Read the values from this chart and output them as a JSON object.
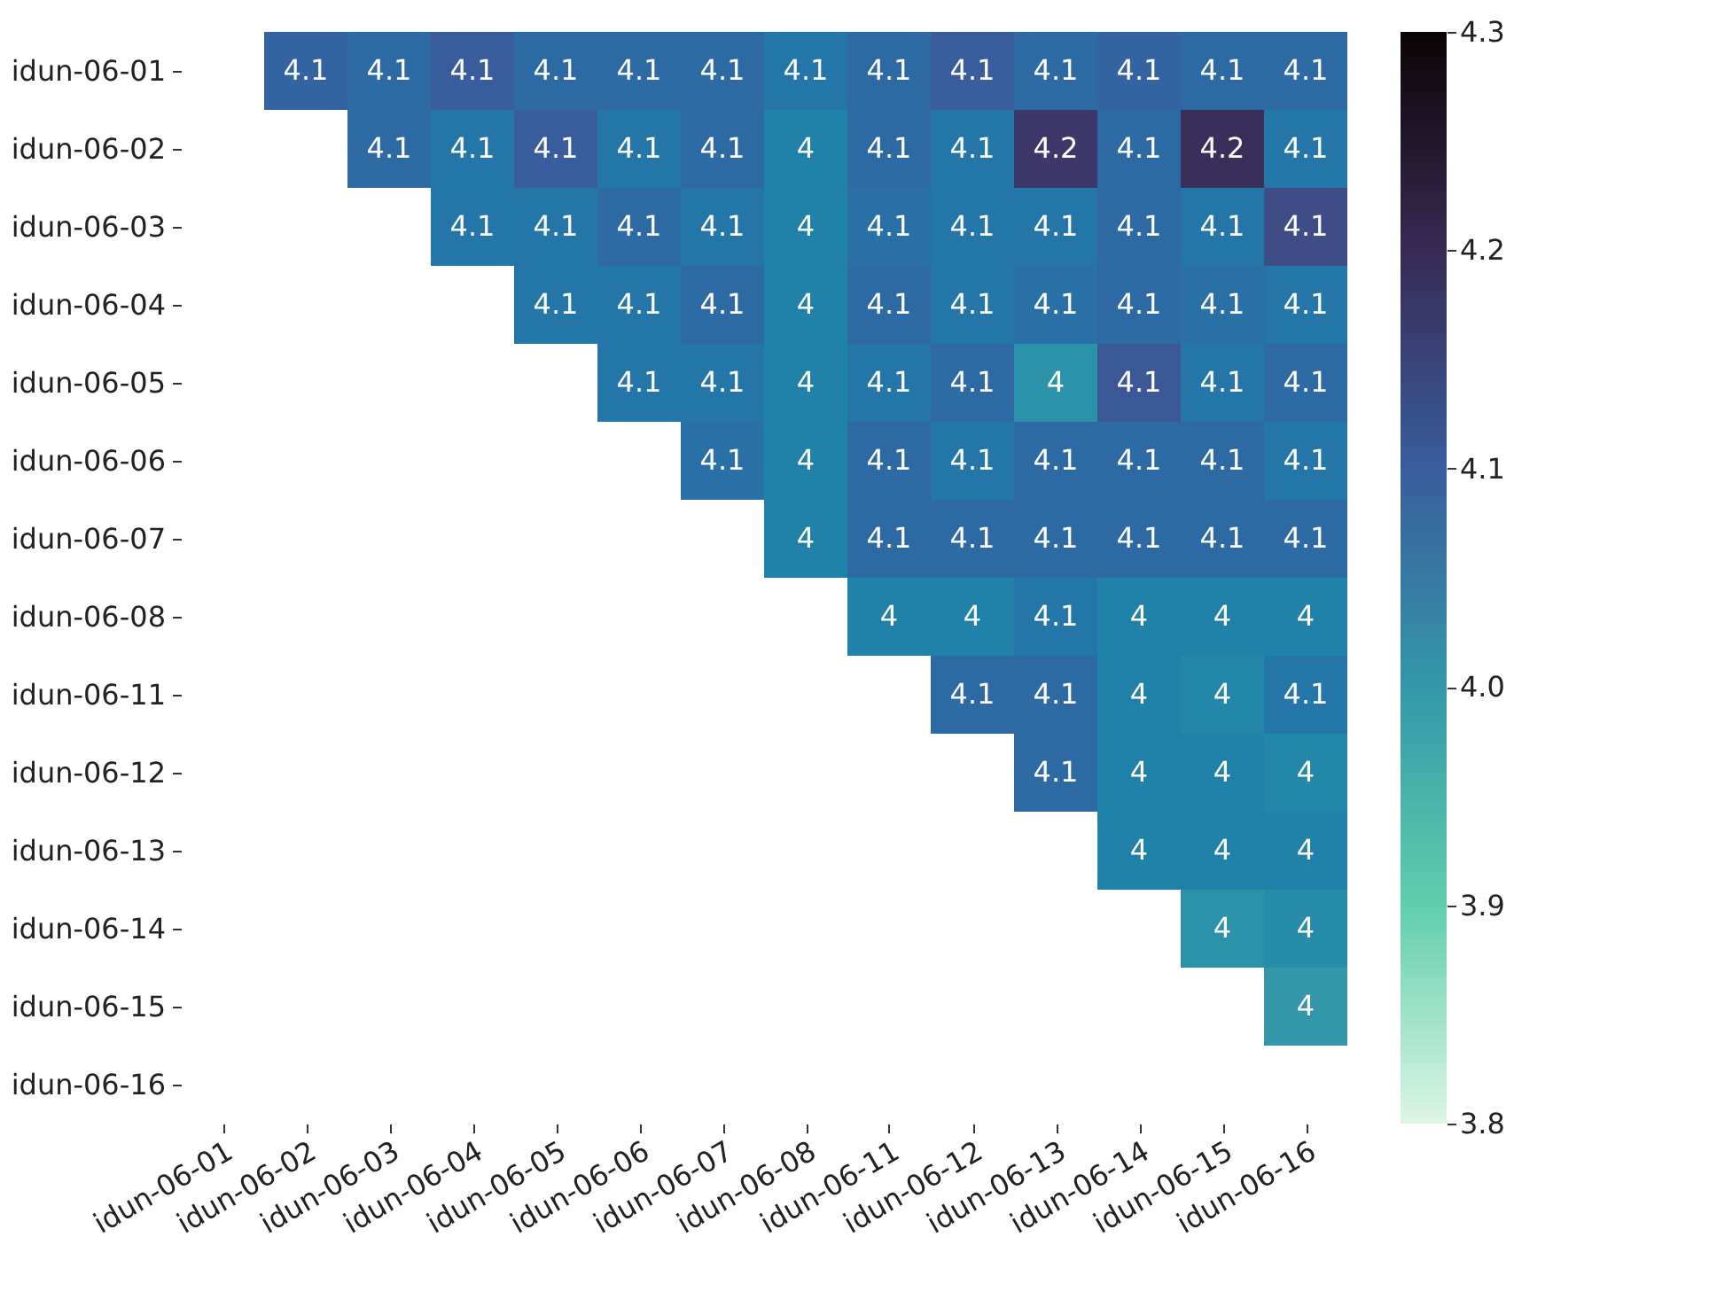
{
  "chart_data": {
    "type": "heatmap",
    "categories": [
      "idun-06-01",
      "idun-06-02",
      "idun-06-03",
      "idun-06-04",
      "idun-06-05",
      "idun-06-06",
      "idun-06-07",
      "idun-06-08",
      "idun-06-11",
      "idun-06-12",
      "idun-06-13",
      "idun-06-14",
      "idun-06-15",
      "idun-06-16"
    ],
    "y_categories": [
      "idun-06-01",
      "idun-06-02",
      "idun-06-03",
      "idun-06-04",
      "idun-06-05",
      "idun-06-06",
      "idun-06-07",
      "idun-06-08",
      "idun-06-11",
      "idun-06-12",
      "idun-06-13",
      "idun-06-14",
      "idun-06-15",
      "idun-06-16"
    ],
    "cells": [
      [
        null,
        4.09,
        4.08,
        4.1,
        4.08,
        4.08,
        4.08,
        4.06,
        4.08,
        4.1,
        4.08,
        4.09,
        4.08,
        4.08
      ],
      [
        null,
        null,
        4.08,
        4.06,
        4.1,
        4.06,
        4.08,
        4.04,
        4.08,
        4.06,
        4.17,
        4.08,
        4.19,
        4.06
      ],
      [
        null,
        null,
        null,
        4.06,
        4.06,
        4.08,
        4.06,
        4.04,
        4.07,
        4.06,
        4.06,
        4.08,
        4.06,
        4.13
      ],
      [
        null,
        null,
        null,
        null,
        4.06,
        4.06,
        4.08,
        4.04,
        4.08,
        4.06,
        4.07,
        4.08,
        4.07,
        4.06
      ],
      [
        null,
        null,
        null,
        null,
        null,
        4.06,
        4.06,
        4.04,
        4.06,
        4.08,
        4.01,
        4.11,
        4.06,
        4.08
      ],
      [
        null,
        null,
        null,
        null,
        null,
        null,
        4.07,
        4.04,
        4.08,
        4.06,
        4.08,
        4.08,
        4.08,
        4.06
      ],
      [
        null,
        null,
        null,
        null,
        null,
        null,
        null,
        4.04,
        4.08,
        4.08,
        4.08,
        4.08,
        4.08,
        4.08
      ],
      [
        null,
        null,
        null,
        null,
        null,
        null,
        null,
        null,
        4.04,
        4.04,
        4.06,
        4.04,
        4.04,
        4.04
      ],
      [
        null,
        null,
        null,
        null,
        null,
        null,
        null,
        null,
        null,
        4.08,
        4.08,
        4.04,
        4.03,
        4.06
      ],
      [
        null,
        null,
        null,
        null,
        null,
        null,
        null,
        null,
        null,
        null,
        4.08,
        4.04,
        4.04,
        4.03
      ],
      [
        null,
        null,
        null,
        null,
        null,
        null,
        null,
        null,
        null,
        null,
        null,
        4.04,
        4.04,
        4.04
      ],
      [
        null,
        null,
        null,
        null,
        null,
        null,
        null,
        null,
        null,
        null,
        null,
        null,
        4.01,
        4.02
      ],
      [
        null,
        null,
        null,
        null,
        null,
        null,
        null,
        null,
        null,
        null,
        null,
        null,
        null,
        4.0
      ],
      [
        null,
        null,
        null,
        null,
        null,
        null,
        null,
        null,
        null,
        null,
        null,
        null,
        null,
        null
      ]
    ],
    "cell_labels": [
      [
        null,
        "4.1",
        "4.1",
        "4.1",
        "4.1",
        "4.1",
        "4.1",
        "4.1",
        "4.1",
        "4.1",
        "4.1",
        "4.1",
        "4.1",
        "4.1"
      ],
      [
        null,
        null,
        "4.1",
        "4.1",
        "4.1",
        "4.1",
        "4.1",
        "4",
        "4.1",
        "4.1",
        "4.2",
        "4.1",
        "4.2",
        "4.1"
      ],
      [
        null,
        null,
        null,
        "4.1",
        "4.1",
        "4.1",
        "4.1",
        "4",
        "4.1",
        "4.1",
        "4.1",
        "4.1",
        "4.1",
        "4.1"
      ],
      [
        null,
        null,
        null,
        null,
        "4.1",
        "4.1",
        "4.1",
        "4",
        "4.1",
        "4.1",
        "4.1",
        "4.1",
        "4.1",
        "4.1"
      ],
      [
        null,
        null,
        null,
        null,
        null,
        "4.1",
        "4.1",
        "4",
        "4.1",
        "4.1",
        "4",
        "4.1",
        "4.1",
        "4.1"
      ],
      [
        null,
        null,
        null,
        null,
        null,
        null,
        "4.1",
        "4",
        "4.1",
        "4.1",
        "4.1",
        "4.1",
        "4.1",
        "4.1"
      ],
      [
        null,
        null,
        null,
        null,
        null,
        null,
        null,
        "4",
        "4.1",
        "4.1",
        "4.1",
        "4.1",
        "4.1",
        "4.1"
      ],
      [
        null,
        null,
        null,
        null,
        null,
        null,
        null,
        null,
        "4",
        "4",
        "4.1",
        "4",
        "4",
        "4"
      ],
      [
        null,
        null,
        null,
        null,
        null,
        null,
        null,
        null,
        null,
        "4.1",
        "4.1",
        "4",
        "4",
        "4.1"
      ],
      [
        null,
        null,
        null,
        null,
        null,
        null,
        null,
        null,
        null,
        null,
        "4.1",
        "4",
        "4",
        "4"
      ],
      [
        null,
        null,
        null,
        null,
        null,
        null,
        null,
        null,
        null,
        null,
        null,
        "4",
        "4",
        "4"
      ],
      [
        null,
        null,
        null,
        null,
        null,
        null,
        null,
        null,
        null,
        null,
        null,
        null,
        "4",
        "4"
      ],
      [
        null,
        null,
        null,
        null,
        null,
        null,
        null,
        null,
        null,
        null,
        null,
        null,
        null,
        "4"
      ],
      [
        null,
        null,
        null,
        null,
        null,
        null,
        null,
        null,
        null,
        null,
        null,
        null,
        null,
        null
      ]
    ],
    "clim": [
      3.8,
      4.3
    ],
    "cticks": [
      3.8,
      3.9,
      {
        "value": 4,
        "label": "4.0"
      },
      4.1,
      4.2,
      4.3
    ]
  }
}
